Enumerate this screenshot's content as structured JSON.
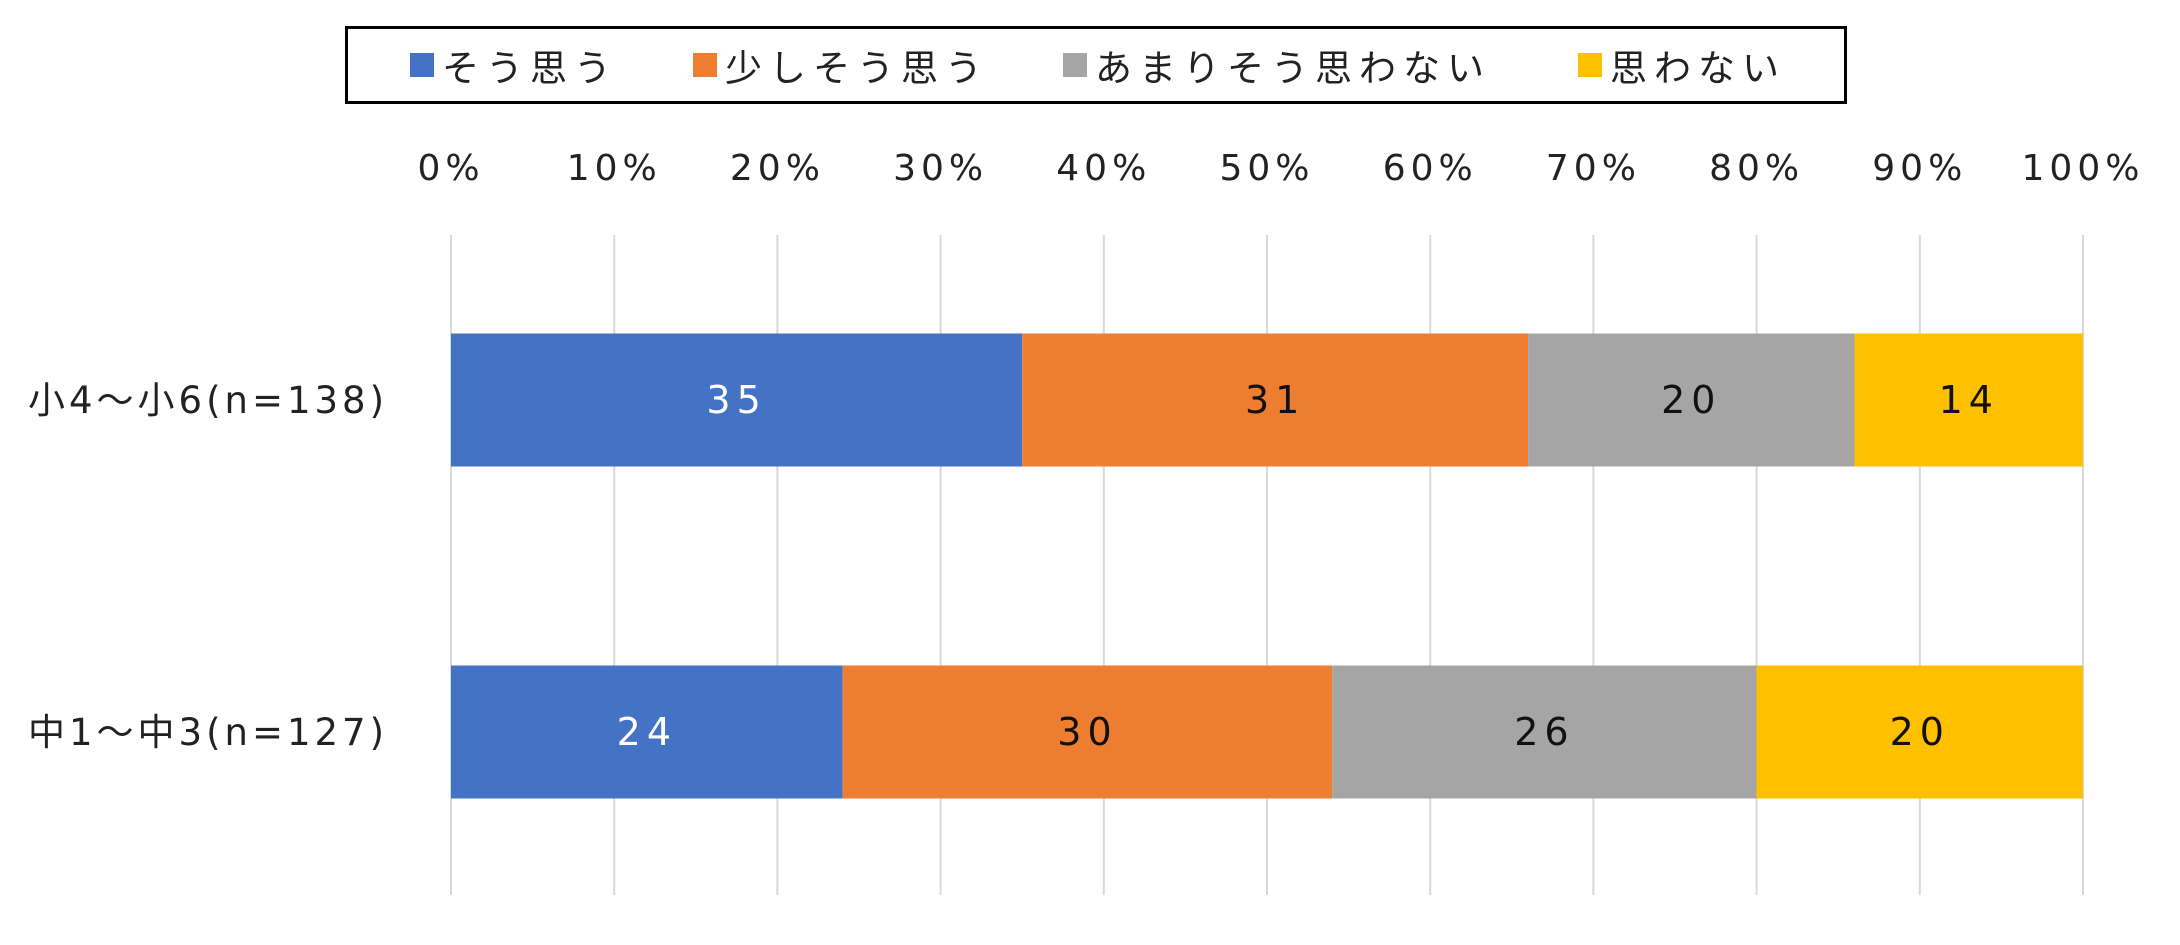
{
  "chart_data": {
    "type": "bar",
    "orientation": "horizontal",
    "stacked": true,
    "percent": true,
    "categories": [
      "小4～小6(n=138)",
      "中1～中3(n=127)"
    ],
    "series": [
      {
        "name": "そう思う",
        "values": [
          35,
          24
        ],
        "color": "#4472C4",
        "label_color": "#ffffff"
      },
      {
        "name": "少しそう思う",
        "values": [
          31,
          30
        ],
        "color": "#ED7D31",
        "label_color": "#111111"
      },
      {
        "name": "あまりそう思わない",
        "values": [
          20,
          26
        ],
        "color": "#A5A5A5",
        "label_color": "#111111"
      },
      {
        "name": "思わない",
        "values": [
          14,
          20
        ],
        "color": "#FFC000",
        "label_color": "#111111"
      }
    ],
    "x_ticks": [
      "0%",
      "10%",
      "20%",
      "30%",
      "40%",
      "50%",
      "60%",
      "70%",
      "80%",
      "90%",
      "100%"
    ],
    "xlim": [
      0,
      100
    ],
    "grid": true,
    "legend_position": "top"
  }
}
